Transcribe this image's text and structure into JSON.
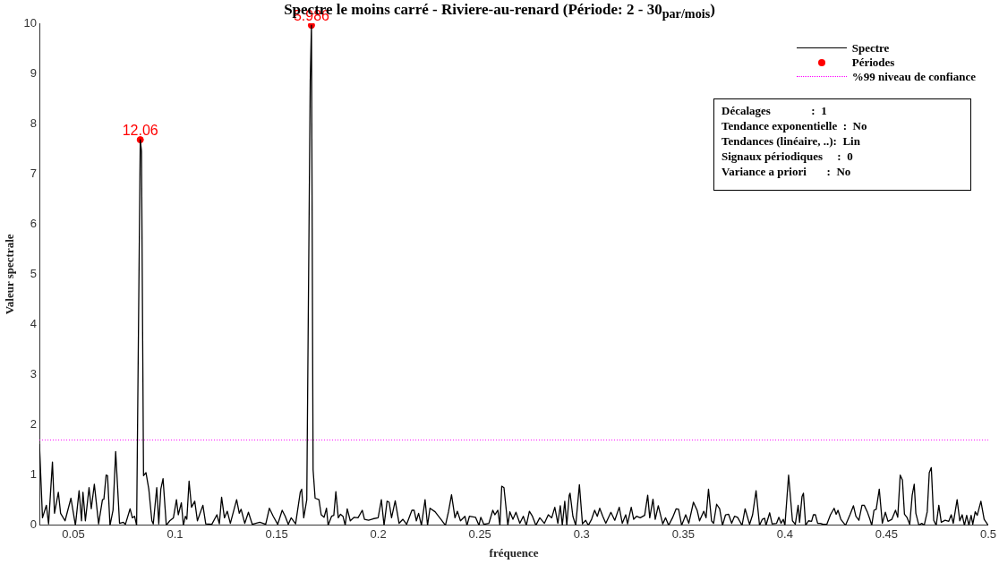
{
  "chart_data": {
    "type": "line",
    "title": "Spectre le moins carré - Riviere-au-renard (Période: 2 - 30$_{par/mois}$)",
    "xlabel": "fréquence",
    "ylabel": "Valeur spectrale",
    "xlim": [
      0.0333,
      0.5
    ],
    "ylim": [
      0,
      10
    ],
    "xticks": [
      0.05,
      0.1,
      0.15,
      0.2,
      0.25,
      0.3,
      0.35,
      0.4,
      0.45,
      0.5
    ],
    "yticks": [
      0,
      1,
      2,
      3,
      4,
      5,
      6,
      7,
      8,
      9,
      10
    ],
    "grid": false,
    "legend": "top right",
    "marker": "none",
    "series": [
      {
        "name": "Spectre",
        "color": "#000000",
        "line_style": "solid",
        "x": [
          0.0333,
          0.0348,
          0.0367,
          0.0378,
          0.0397,
          0.0407,
          0.0426,
          0.0437,
          0.0459,
          0.0488,
          0.051,
          0.0528,
          0.054,
          0.0547,
          0.0559,
          0.0577,
          0.0588,
          0.0603,
          0.0624,
          0.0643,
          0.065,
          0.0661,
          0.0668,
          0.068,
          0.0695,
          0.0708,
          0.0727,
          0.0746,
          0.0756,
          0.0779,
          0.079,
          0.0801,
          0.0811,
          0.0829,
          0.0835,
          0.0845,
          0.0857,
          0.0871,
          0.0886,
          0.0893,
          0.091,
          0.092,
          0.093,
          0.0941,
          0.0957,
          0.0974,
          0.0992,
          0.1007,
          0.1016,
          0.1031,
          0.1041,
          0.1051,
          0.1058,
          0.1069,
          0.1081,
          0.1097,
          0.111,
          0.1137,
          0.1151,
          0.1181,
          0.1206,
          0.1218,
          0.1229,
          0.1243,
          0.1257,
          0.1272,
          0.1303,
          0.1316,
          0.1325,
          0.1343,
          0.1361,
          0.138,
          0.1417,
          0.1446,
          0.1464,
          0.1483,
          0.1505,
          0.1527,
          0.1542,
          0.1557,
          0.1571,
          0.1593,
          0.1616,
          0.1623,
          0.1633,
          0.1648,
          0.1665,
          0.1671,
          0.1679,
          0.1689,
          0.1708,
          0.1719,
          0.1733,
          0.1745,
          0.1753,
          0.177,
          0.1781,
          0.1791,
          0.1803,
          0.1814,
          0.1826,
          0.1837,
          0.1847,
          0.1862,
          0.1881,
          0.19,
          0.1921,
          0.1932,
          0.1952,
          0.1974,
          0.1999,
          0.2015,
          0.2028,
          0.2043,
          0.2053,
          0.2065,
          0.2083,
          0.2102,
          0.2121,
          0.2139,
          0.2165,
          0.2176,
          0.2187,
          0.2198,
          0.2212,
          0.223,
          0.2242,
          0.2254,
          0.2279,
          0.2308,
          0.233,
          0.2345,
          0.236,
          0.2377,
          0.2389,
          0.2404,
          0.2426,
          0.2436,
          0.2448,
          0.2478,
          0.2495,
          0.2504,
          0.2519,
          0.2544,
          0.2563,
          0.2573,
          0.2588,
          0.2598,
          0.2607,
          0.2618,
          0.2637,
          0.2647,
          0.2662,
          0.2677,
          0.2696,
          0.2713,
          0.2728,
          0.2743,
          0.2758,
          0.2775,
          0.2794,
          0.2817,
          0.2836,
          0.2853,
          0.2868,
          0.2883,
          0.2895,
          0.2905,
          0.2917,
          0.2927,
          0.2939,
          0.2943,
          0.2957,
          0.2971,
          0.2989,
          0.3004,
          0.302,
          0.3033,
          0.3049,
          0.3064,
          0.3077,
          0.3089,
          0.3104,
          0.3119,
          0.3144,
          0.3163,
          0.3185,
          0.32,
          0.3217,
          0.3226,
          0.3244,
          0.3256,
          0.327,
          0.3288,
          0.331,
          0.3325,
          0.3335,
          0.3351,
          0.3362,
          0.3377,
          0.3399,
          0.3413,
          0.3428,
          0.3447,
          0.3465,
          0.3477,
          0.3492,
          0.3512,
          0.3527,
          0.355,
          0.3568,
          0.358,
          0.3601,
          0.3612,
          0.3624,
          0.3639,
          0.3649,
          0.3664,
          0.3679,
          0.3693,
          0.3708,
          0.3723,
          0.3738,
          0.3752,
          0.3767,
          0.3789,
          0.3804,
          0.3826,
          0.3841,
          0.3858,
          0.3875,
          0.3889,
          0.39,
          0.3907,
          0.3925,
          0.3937,
          0.3959,
          0.397,
          0.3981,
          0.3992,
          0.4,
          0.4018,
          0.4037,
          0.4051,
          0.4065,
          0.4072,
          0.4084,
          0.4091,
          0.4102,
          0.4116,
          0.4131,
          0.414,
          0.415,
          0.4161,
          0.4175,
          0.4187,
          0.4206,
          0.4224,
          0.4242,
          0.4252,
          0.4261,
          0.4275,
          0.4298,
          0.432,
          0.4337,
          0.4349,
          0.4364,
          0.4379,
          0.439,
          0.4405,
          0.4418,
          0.4427,
          0.4438,
          0.4449,
          0.4464,
          0.4479,
          0.4494,
          0.4507,
          0.4526,
          0.4544,
          0.4555,
          0.4567,
          0.4578,
          0.4588,
          0.46,
          0.4614,
          0.4626,
          0.4636,
          0.4644,
          0.4659,
          0.4673,
          0.4685,
          0.47,
          0.471,
          0.472,
          0.4732,
          0.4744,
          0.4757,
          0.4769,
          0.4788,
          0.4806,
          0.4818,
          0.4828,
          0.4847,
          0.486,
          0.4872,
          0.4883,
          0.4894,
          0.4905,
          0.4916,
          0.4924,
          0.4936,
          0.4946,
          0.4964,
          0.498,
          0.5
        ],
        "values": [
          1.62,
          0.15,
          0.4,
          0.03,
          1.26,
          0.24,
          0.66,
          0.24,
          0.09,
          0.54,
          0.0,
          0.69,
          0.09,
          0.66,
          0.09,
          0.75,
          0.33,
          0.82,
          0.03,
          0.51,
          0.52,
          1.0,
          0.99,
          0.0,
          0.3,
          1.47,
          0.04,
          0.06,
          0.02,
          0.33,
          0.15,
          0.18,
          0.0,
          7.68,
          7.45,
          0.99,
          1.05,
          0.72,
          0.09,
          0.03,
          0.75,
          0.03,
          0.72,
          0.93,
          0.0,
          0.09,
          0.15,
          0.51,
          0.21,
          0.45,
          0.0,
          0.18,
          0.12,
          0.88,
          0.36,
          0.48,
          0.09,
          0.4,
          0.03,
          0.02,
          0.21,
          0.03,
          0.56,
          0.15,
          0.28,
          0.04,
          0.51,
          0.24,
          0.32,
          0.04,
          0.26,
          0.02,
          0.06,
          0.02,
          0.34,
          0.18,
          0.02,
          0.3,
          0.18,
          0.02,
          0.15,
          0.03,
          0.66,
          0.72,
          0.15,
          0.51,
          8.85,
          9.96,
          1.11,
          0.54,
          0.51,
          0.21,
          0.16,
          0.34,
          0.0,
          0.18,
          0.2,
          0.67,
          0.15,
          0.22,
          0.18,
          0.0,
          0.33,
          0.09,
          0.16,
          0.15,
          0.3,
          0.12,
          0.1,
          0.13,
          0.15,
          0.51,
          0.0,
          0.48,
          0.46,
          0.15,
          0.49,
          0.04,
          0.12,
          0.02,
          0.3,
          0.3,
          0.09,
          0.24,
          0.0,
          0.51,
          0.0,
          0.34,
          0.27,
          0.12,
          0.0,
          0.27,
          0.61,
          0.15,
          0.28,
          0.09,
          0.18,
          0.0,
          0.18,
          0.16,
          0.0,
          0.16,
          0.02,
          0.04,
          0.3,
          0.21,
          0.3,
          0.0,
          0.78,
          0.75,
          0.0,
          0.27,
          0.12,
          0.26,
          0.04,
          0.18,
          0.0,
          0.28,
          0.18,
          0.0,
          0.15,
          0.04,
          0.21,
          0.15,
          0.36,
          0.04,
          0.39,
          0.0,
          0.48,
          0.0,
          0.6,
          0.64,
          0.18,
          0.0,
          0.81,
          0.03,
          0.1,
          0.0,
          0.12,
          0.3,
          0.18,
          0.34,
          0.18,
          0.04,
          0.26,
          0.1,
          0.36,
          0.04,
          0.21,
          0.03,
          0.36,
          0.12,
          0.18,
          0.15,
          0.2,
          0.6,
          0.15,
          0.52,
          0.12,
          0.39,
          0.03,
          0.15,
          0.0,
          0.15,
          0.33,
          0.32,
          0.0,
          0.21,
          0.04,
          0.46,
          0.3,
          0.09,
          0.28,
          0.15,
          0.72,
          0.09,
          0.04,
          0.42,
          0.33,
          0.0,
          0.21,
          0.22,
          0.04,
          0.18,
          0.16,
          0.0,
          0.33,
          0.02,
          0.21,
          0.69,
          0.0,
          0.12,
          0.14,
          0.0,
          0.25,
          0.03,
          0.04,
          0.16,
          0.04,
          0.12,
          0.0,
          1.0,
          0.09,
          0.02,
          0.4,
          0.06,
          0.57,
          0.64,
          0.0,
          0.09,
          0.08,
          0.21,
          0.21,
          0.04,
          0.04,
          0.02,
          0.02,
          0.21,
          0.34,
          0.22,
          0.3,
          0.12,
          0.0,
          0.21,
          0.39,
          0.18,
          0.1,
          0.4,
          0.4,
          0.27,
          0.12,
          0.0,
          0.3,
          0.32,
          0.72,
          0.04,
          0.26,
          0.08,
          0.12,
          0.3,
          0.16,
          1.0,
          0.9,
          0.22,
          0.16,
          0.02,
          0.6,
          0.82,
          0.24,
          0.0,
          0.04,
          0.0,
          0.27,
          1.05,
          1.15,
          0.1,
          0.0,
          0.4,
          0.06,
          0.1,
          0.08,
          0.21,
          0.04,
          0.51,
          0.09,
          0.21,
          0.0,
          0.2,
          0.0,
          0.2,
          0.02,
          0.27,
          0.2,
          0.48,
          0.12,
          0.0
        ]
      },
      {
        "name": "Périodes",
        "type": "scatter",
        "color": "#ff0000",
        "marker": "circle",
        "x": [
          0.0829,
          0.1671
        ],
        "values": [
          7.68,
          9.96
        ]
      },
      {
        "name": "%99 niveau de confiance",
        "color": "#ff00ff",
        "line_style": "dotted",
        "x": [
          0.0333,
          0.5
        ],
        "values": [
          1.7,
          1.7
        ]
      }
    ],
    "annotations": [
      {
        "text": "12.06",
        "x": 0.0829,
        "y": 7.68
      },
      {
        "text": "5.986",
        "x": 0.1671,
        "y": 9.96
      },
      "Décalages              :  1",
      "Tendance exponentielle  :  No",
      "Tendances (linéaire, ..):  Lin",
      "Signaux périodiques     :  0",
      "Variance a priori       :  No"
    ]
  }
}
